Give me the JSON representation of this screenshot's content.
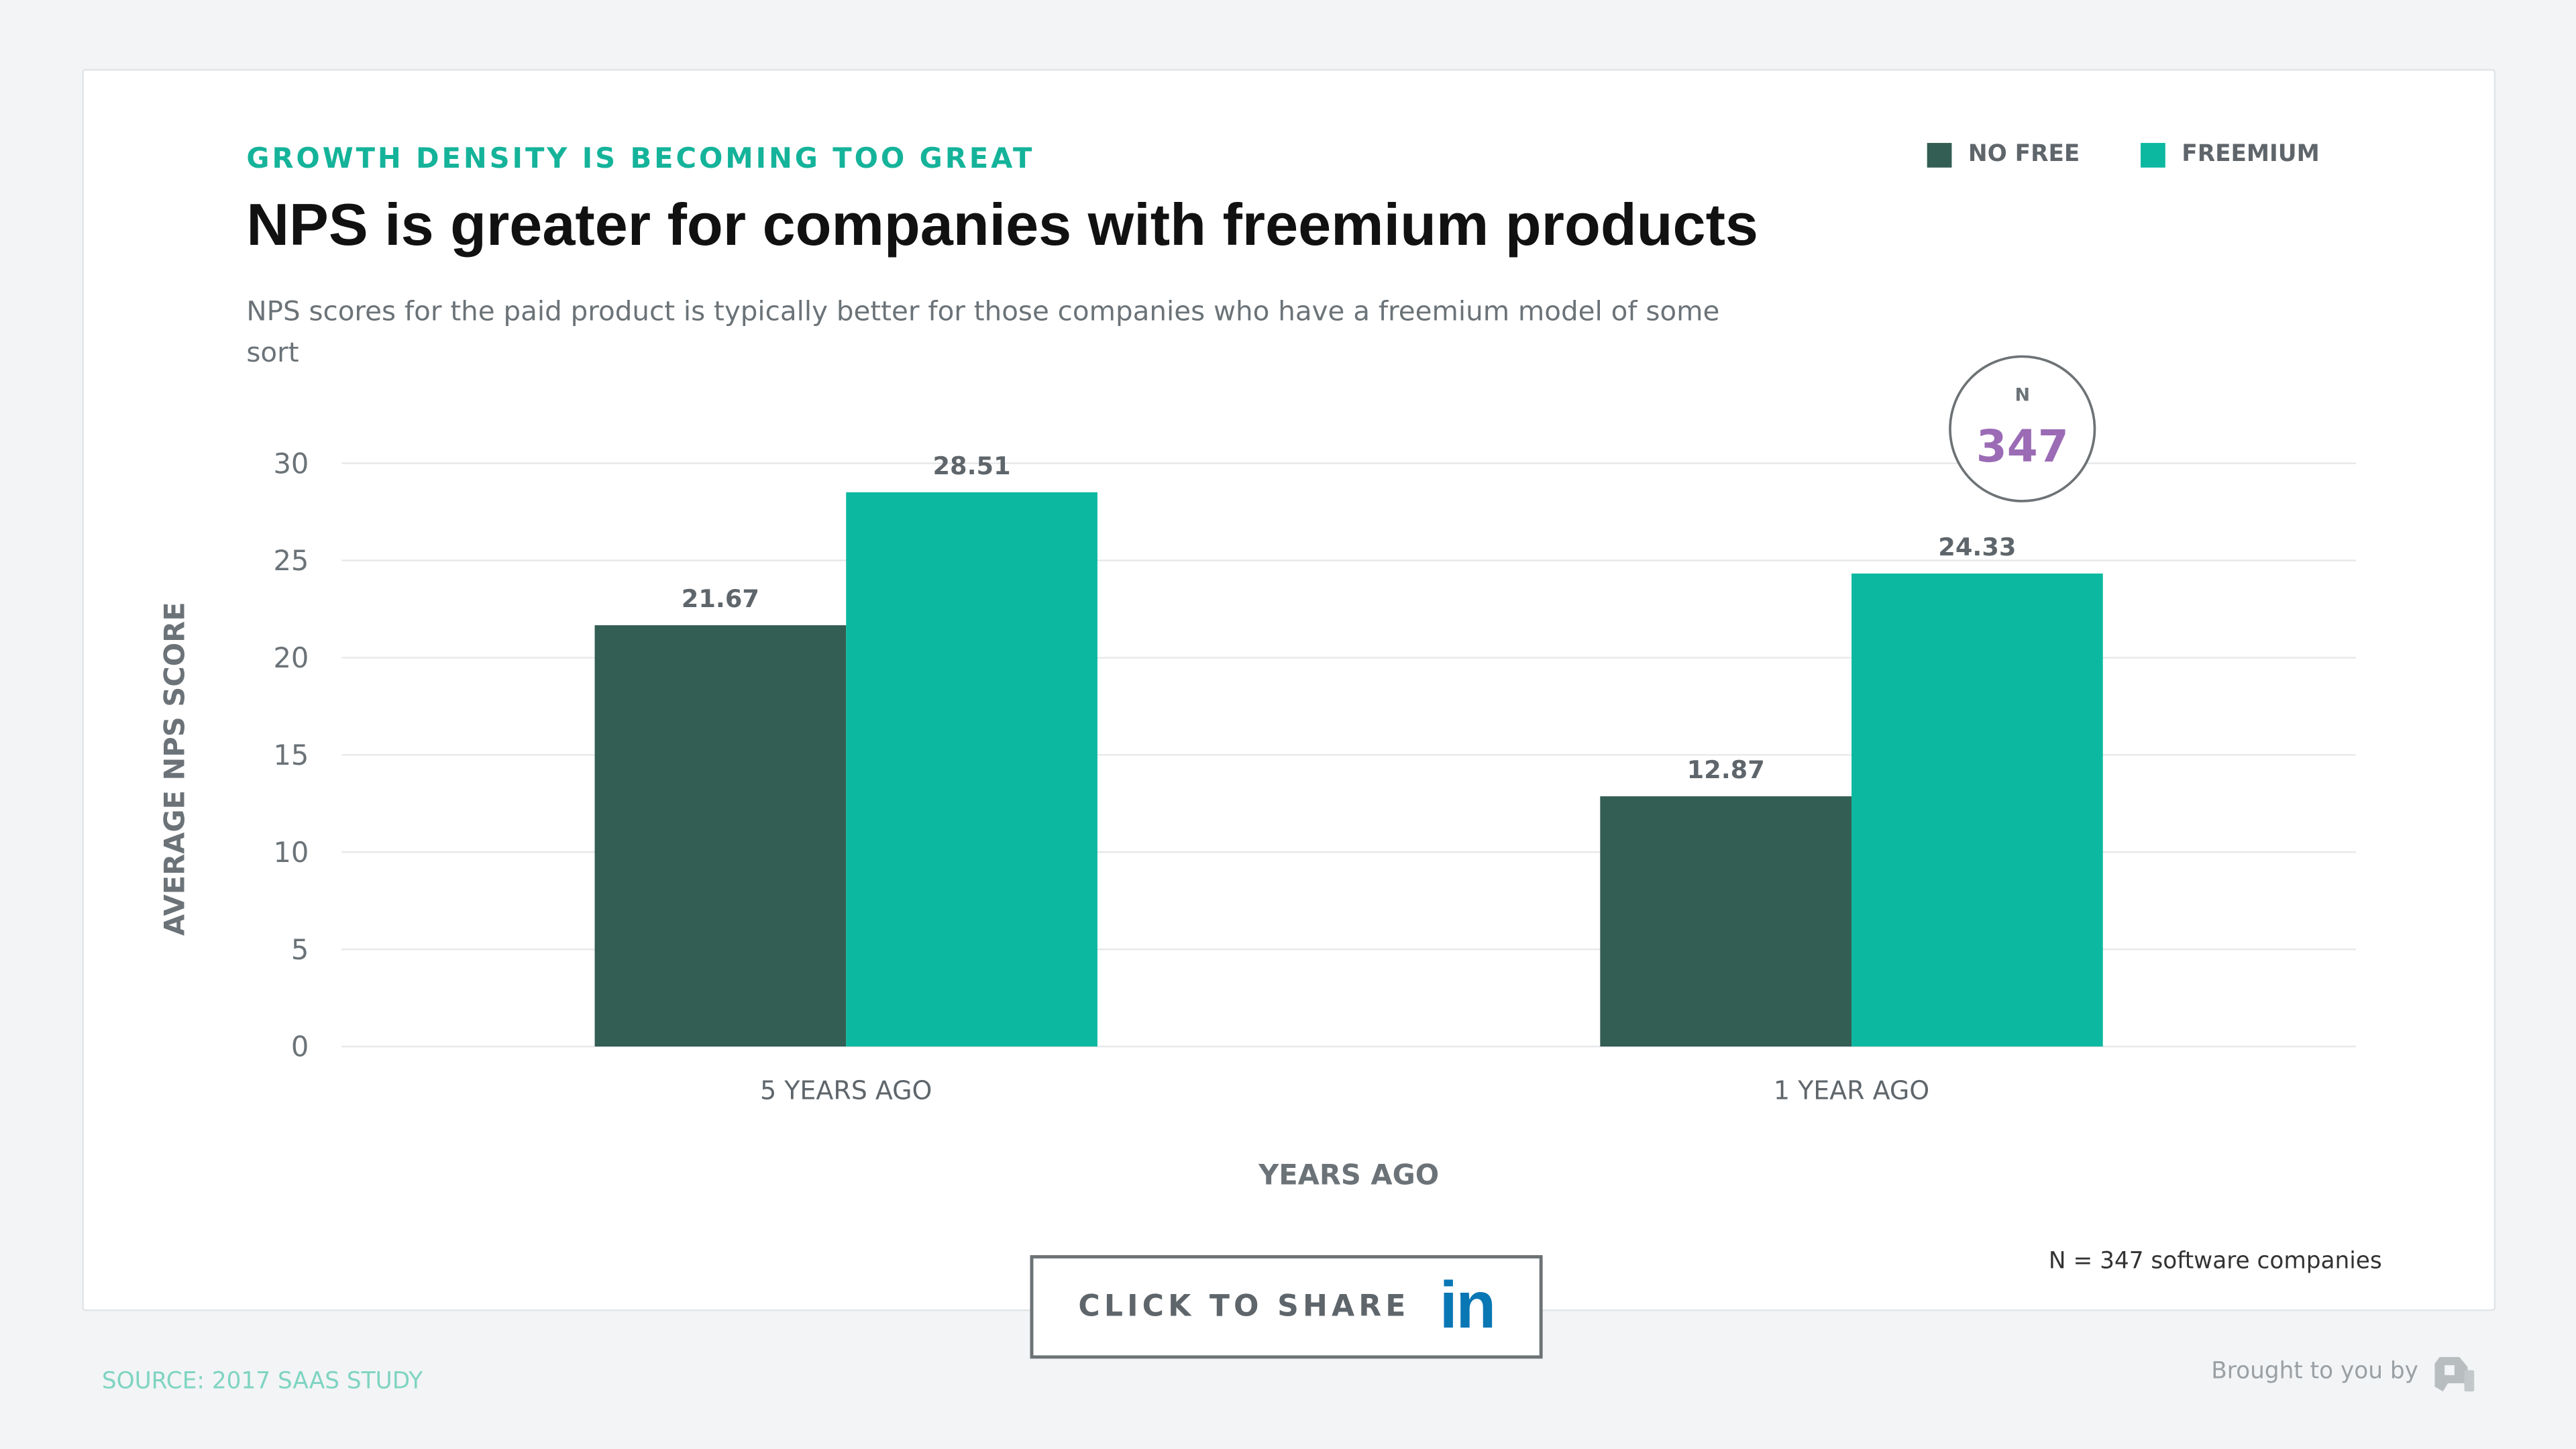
{
  "header": {
    "kicker": "GROWTH DENSITY IS BECOMING TOO GREAT",
    "title": "NPS is greater for companies with freemium products",
    "description": "NPS scores for the paid product is typically better for those companies who have a freemium model of some sort"
  },
  "badge": {
    "label": "N",
    "value": "347",
    "value_color": "#9b6bb5"
  },
  "footnote": "N = 347 software companies",
  "share": {
    "label": "CLICK TO SHARE",
    "icon_text": "in",
    "icon": "linkedin-icon"
  },
  "source": "SOURCE: 2017 SAAS STUDY",
  "brought_by": "Brought to you by",
  "chart_data": {
    "type": "bar",
    "categories": [
      "5 YEARS AGO",
      "1 YEAR AGO"
    ],
    "series": [
      {
        "name": "NO FREE",
        "color": "#335e53",
        "values": [
          21.67,
          12.87
        ],
        "labels": [
          "21.67",
          "12.87"
        ]
      },
      {
        "name": "FREEMIUM",
        "color": "#0db8a0",
        "values": [
          28.51,
          24.33
        ],
        "labels": [
          "28.51",
          "24.33"
        ]
      }
    ],
    "xlabel": "YEARS AGO",
    "ylabel": "AVERAGE NPS SCORE",
    "ylim": [
      0,
      30
    ],
    "yticks": [
      "0",
      "5",
      "10",
      "15",
      "20",
      "25",
      "30"
    ],
    "grid": true,
    "legend": "top-right"
  }
}
